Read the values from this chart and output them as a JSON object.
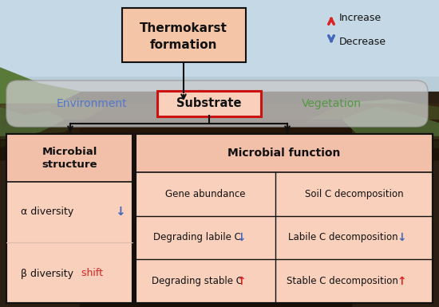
{
  "title_line1": "Thermokarst",
  "title_line2": "formation",
  "bg_salmon": "#f5c5a8",
  "box_salmon": "#f9d0bc",
  "substrate_fill": "#f9d0bc",
  "substrate_border": "#cc1111",
  "environment_color": "#5577cc",
  "vegetation_color": "#559944",
  "increase_color": "#dd2222",
  "decrease_color": "#4466bb",
  "black": "#111111",
  "pill_fill": "#cccccc",
  "pill_alpha": 0.7,
  "environment_text": "Environment",
  "substrate_text": "Substrate",
  "vegetation_text": "Vegetation",
  "increase_text": "Increase",
  "decrease_text": "Decrease",
  "microbial_structure_title": "Microbial\nstructure",
  "microbial_function_title": "Microbial function",
  "alpha_text": "α diversity",
  "alpha_arrow": "↓",
  "alpha_arrow_color": "#4466bb",
  "beta_text": "β diversity",
  "beta_word": "shift",
  "beta_word_color": "#dd2222",
  "gene_abundance": "Gene abundance",
  "soil_c_decomp": "Soil C decomposition",
  "degrading_labile": "Degrading labile C",
  "labile_decomp": "Labile C decomposition",
  "degrading_stable": "Degrading stable C",
  "stable_decomp": "Stable C decomposition",
  "down_arrow": "↓",
  "up_arrow": "↑",
  "fig_w": 5.5,
  "fig_h": 3.85,
  "dpi": 100
}
